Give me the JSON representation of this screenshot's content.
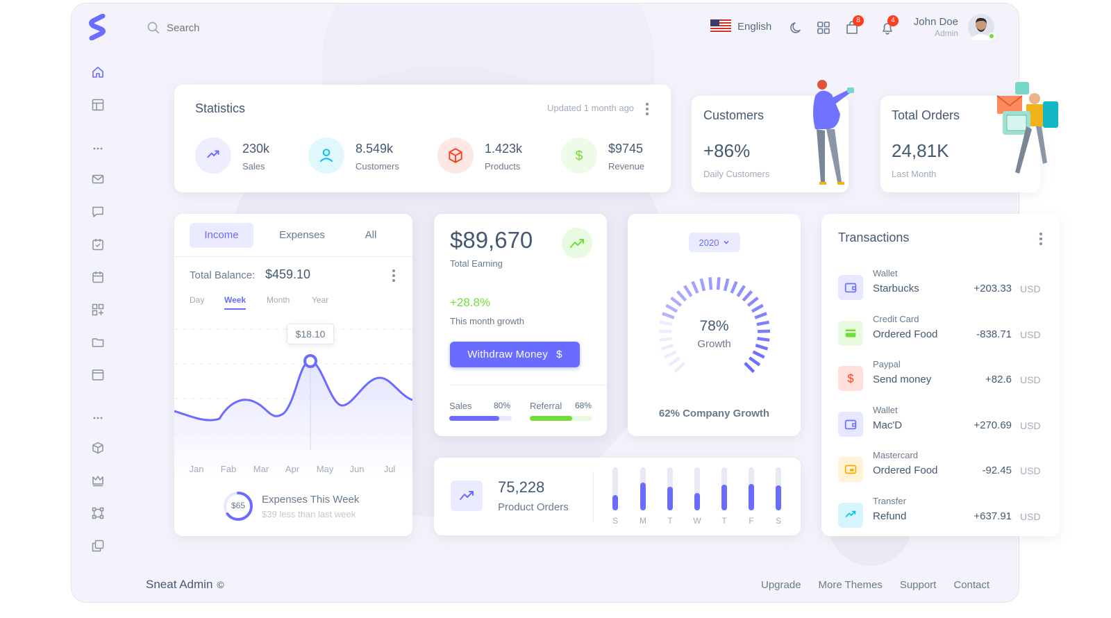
{
  "brand": {
    "logo_letter": "S",
    "name": "Sneat Admin",
    "copyright": "©"
  },
  "navbar": {
    "search_placeholder": "Search",
    "language": "English",
    "cart_badge": "8",
    "notification_badge": "4",
    "user_name": "John Doe",
    "user_role": "Admin"
  },
  "sidebar": {
    "icons": [
      "home-icon",
      "layout-icon",
      "ellipsis-icon",
      "mail-icon",
      "chat-icon",
      "calendar-check-icon",
      "calendar-icon",
      "grid-plus-icon",
      "folder-icon",
      "window-icon",
      "ellipsis-icon",
      "cube-icon",
      "crown-icon",
      "vector-icon",
      "copy-icon"
    ]
  },
  "statistics": {
    "title": "Statistics",
    "updated": "Updated 1 month ago",
    "items": [
      {
        "value": "230k",
        "label": "Sales",
        "color": "#696cff",
        "icon": "trending-up-icon"
      },
      {
        "value": "8.549k",
        "label": "Customers",
        "color": "#03c3ec",
        "icon": "user-icon"
      },
      {
        "value": "1.423k",
        "label": "Products",
        "color": "#ff3e1d",
        "icon": "cube-icon"
      },
      {
        "value": "$9745",
        "label": "Revenue",
        "color": "#71dd37",
        "icon": "dollar-icon"
      }
    ]
  },
  "customers": {
    "title": "Customers",
    "value": "+86%",
    "label": "Daily Customers"
  },
  "total_orders": {
    "title": "Total Orders",
    "value": "24,81K",
    "label": "Last Month"
  },
  "income": {
    "tabs": [
      "Income",
      "Expenses",
      "All"
    ],
    "active_tab": "Income",
    "balance_label": "Total Balance:",
    "balance_value": "$459.10",
    "periods": [
      "Day",
      "Week",
      "Month",
      "Year"
    ],
    "active_period": "Week",
    "tooltip": "$18.10",
    "months": [
      "Jan",
      "Fab",
      "Mar",
      "Apr",
      "May",
      "Jun",
      "Jul"
    ],
    "expense_ring_value": "$65",
    "expense_ring_percent": 65,
    "expense_title": "Expenses This Week",
    "expense_sub": "$39 less than last week"
  },
  "earning": {
    "value": "$89,670",
    "label": "Total Earning",
    "growth": "+28.8%",
    "growth_label": "This month growth",
    "withdraw_button": "Withdraw Money",
    "withdraw_icon": "$",
    "sales_label": "Sales",
    "sales_percent": "80%",
    "referral_label": "Referral",
    "referral_percent": "68%",
    "sales_fill": 0.8,
    "referral_fill": 0.68
  },
  "growth": {
    "year": "2020",
    "percent": "78%",
    "label": "Growth",
    "company_growth": "62% Company Growth",
    "value": 0.78
  },
  "product_orders": {
    "value": "75,228",
    "label": "Product Orders",
    "days": [
      "S",
      "M",
      "T",
      "W",
      "T",
      "F",
      "S"
    ],
    "fill": [
      0.35,
      0.65,
      0.55,
      0.4,
      0.6,
      0.62,
      0.58
    ]
  },
  "transactions": {
    "title": "Transactions",
    "currency": "USD",
    "items": [
      {
        "type": "Wallet",
        "name": "Starbucks",
        "amount": "+203.33",
        "icon": "wallet-icon",
        "color": "#696cff",
        "bg": "#e7e7ff"
      },
      {
        "type": "Credit Card",
        "name": "Ordered Food",
        "amount": "-838.71",
        "icon": "credit-card-icon",
        "color": "#71dd37",
        "bg": "#e8fadf"
      },
      {
        "type": "Paypal",
        "name": "Send money",
        "amount": "+82.6",
        "icon": "dollar-icon",
        "color": "#ff3e1d",
        "bg": "#ffe0db"
      },
      {
        "type": "Wallet",
        "name": "Mac'D",
        "amount": "+270.69",
        "icon": "wallet-icon",
        "color": "#696cff",
        "bg": "#e7e7ff"
      },
      {
        "type": "Mastercard",
        "name": "Ordered Food",
        "amount": "-92.45",
        "icon": "mastercard-icon",
        "color": "#ffab00",
        "bg": "#fff2d6"
      },
      {
        "type": "Transfer",
        "name": "Refund",
        "amount": "+637.91",
        "icon": "trending-up-icon",
        "color": "#03c3ec",
        "bg": "#d7f5fc"
      }
    ]
  },
  "footer": {
    "links": [
      "Upgrade",
      "More Themes",
      "Support",
      "Contact"
    ]
  }
}
